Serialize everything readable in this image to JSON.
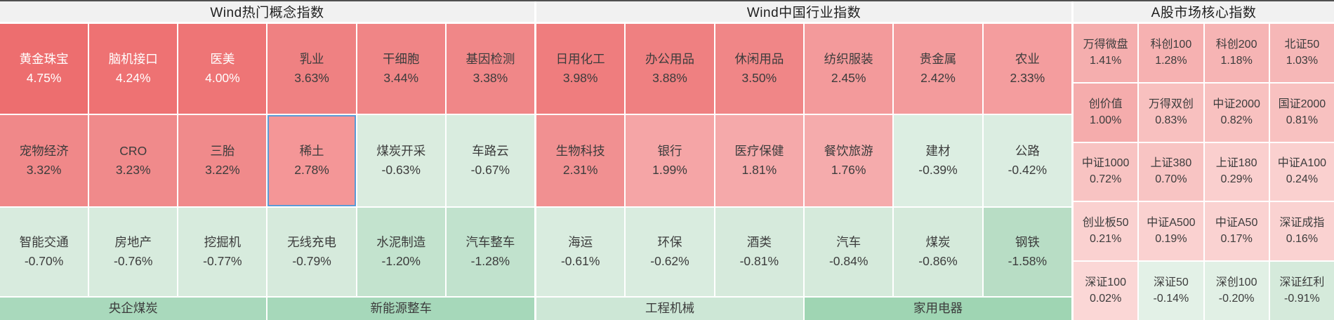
{
  "colors": {
    "title_bg": "#f1f1f1",
    "selected_border": "#5b9bd5",
    "page_bg": "#ffffff",
    "positive_strong": "#ed6e6f",
    "negative_strong": "#b8ddc5"
  },
  "sections": [
    {
      "title": "Wind热门概念指数",
      "columns": 6,
      "cells": [
        {
          "name": "黄金珠宝",
          "value": "4.75%",
          "bg": "#ed6e6f",
          "fg": "#ffffff"
        },
        {
          "name": "脑机接口",
          "value": "4.24%",
          "bg": "#ee7273",
          "fg": "#ffffff"
        },
        {
          "name": "医美",
          "value": "4.00%",
          "bg": "#ee7576",
          "fg": "#ffffff"
        },
        {
          "name": "乳业",
          "value": "3.63%",
          "bg": "#ef8182"
        },
        {
          "name": "干细胞",
          "value": "3.44%",
          "bg": "#f08586"
        },
        {
          "name": "基因检测",
          "value": "3.38%",
          "bg": "#f08788"
        },
        {
          "name": "宠物经济",
          "value": "3.32%",
          "bg": "#f08889"
        },
        {
          "name": "CRO",
          "value": "3.23%",
          "bg": "#f08a8b"
        },
        {
          "name": "三胎",
          "value": "3.22%",
          "bg": "#f08a8b"
        },
        {
          "name": "稀土",
          "value": "2.78%",
          "bg": "#f49697",
          "selected": true
        },
        {
          "name": "煤炭开采",
          "value": "-0.63%",
          "bg": "#daecdf"
        },
        {
          "name": "车路云",
          "value": "-0.67%",
          "bg": "#d9ecdf"
        },
        {
          "name": "智能交通",
          "value": "-0.70%",
          "bg": "#d8ebde"
        },
        {
          "name": "房地产",
          "value": "-0.76%",
          "bg": "#d7ebdd"
        },
        {
          "name": "挖掘机",
          "value": "-0.77%",
          "bg": "#d7ebdd"
        },
        {
          "name": "无线充电",
          "value": "-0.79%",
          "bg": "#d6eadc"
        },
        {
          "name": "水泥制造",
          "value": "-1.20%",
          "bg": "#c3e3ce"
        },
        {
          "name": "汽车整车",
          "value": "-1.28%",
          "bg": "#c1e2cd"
        }
      ],
      "footer": [
        {
          "label": "央企煤炭",
          "bg": "#a9d9bc"
        },
        {
          "label": "新能源整车",
          "bg": "#a6d8ba"
        }
      ]
    },
    {
      "title": "Wind中国行业指数",
      "columns": 6,
      "cells": [
        {
          "name": "日用化工",
          "value": "3.98%",
          "bg": "#ef7d7e"
        },
        {
          "name": "办公用品",
          "value": "3.88%",
          "bg": "#ef8081"
        },
        {
          "name": "休闲用品",
          "value": "3.50%",
          "bg": "#f08687"
        },
        {
          "name": "纺织服装",
          "value": "2.45%",
          "bg": "#f39a9b"
        },
        {
          "name": "贵金属",
          "value": "2.42%",
          "bg": "#f39b9c"
        },
        {
          "name": "农业",
          "value": "2.33%",
          "bg": "#f49d9e"
        },
        {
          "name": "生物科技",
          "value": "2.31%",
          "bg": "#f19091"
        },
        {
          "name": "银行",
          "value": "1.99%",
          "bg": "#f5a5a6"
        },
        {
          "name": "医疗保健",
          "value": "1.81%",
          "bg": "#f5a9aa"
        },
        {
          "name": "餐饮旅游",
          "value": "1.76%",
          "bg": "#f5abac"
        },
        {
          "name": "建材",
          "value": "-0.39%",
          "bg": "#dceee2"
        },
        {
          "name": "公路",
          "value": "-0.42%",
          "bg": "#dbede1"
        },
        {
          "name": "海运",
          "value": "-0.61%",
          "bg": "#d9ecdf"
        },
        {
          "name": "环保",
          "value": "-0.62%",
          "bg": "#d9ecdf"
        },
        {
          "name": "酒类",
          "value": "-0.81%",
          "bg": "#d6eadc"
        },
        {
          "name": "汽车",
          "value": "-0.84%",
          "bg": "#d5eadb"
        },
        {
          "name": "煤炭",
          "value": "-0.86%",
          "bg": "#d5eadb"
        },
        {
          "name": "钢铁",
          "value": "-1.58%",
          "bg": "#b8ddc5"
        }
      ],
      "footer": [
        {
          "label": "工程机械",
          "bg": "#cde7d6"
        },
        {
          "label": "家用电器",
          "bg": "#9fd5b3"
        }
      ]
    },
    {
      "title": "A股市场核心指数",
      "columns": 4,
      "cells": [
        {
          "name": "万得微盘",
          "value": "1.41%",
          "bg": "#f5aeae"
        },
        {
          "name": "科创100",
          "value": "1.28%",
          "bg": "#f6b1b1"
        },
        {
          "name": "科创200",
          "value": "1.18%",
          "bg": "#f6b4b4"
        },
        {
          "name": "北证50",
          "value": "1.03%",
          "bg": "#f6b7b7"
        },
        {
          "name": "创价值",
          "value": "1.00%",
          "bg": "#f5acac"
        },
        {
          "name": "万得双创",
          "value": "0.83%",
          "bg": "#f8c0bf"
        },
        {
          "name": "中证2000",
          "value": "0.82%",
          "bg": "#f8c1c0"
        },
        {
          "name": "国证2000",
          "value": "0.81%",
          "bg": "#f8c1c0"
        },
        {
          "name": "中证1000",
          "value": "0.72%",
          "bg": "#f8c3c2"
        },
        {
          "name": "上证380",
          "value": "0.70%",
          "bg": "#f8c4c3"
        },
        {
          "name": "上证180",
          "value": "0.29%",
          "bg": "#facfce"
        },
        {
          "name": "中证A100",
          "value": "0.24%",
          "bg": "#fad0cf"
        },
        {
          "name": "创业板50",
          "value": "0.21%",
          "bg": "#fad1d0"
        },
        {
          "name": "中证A500",
          "value": "0.19%",
          "bg": "#fad1d0"
        },
        {
          "name": "中证A50",
          "value": "0.17%",
          "bg": "#fad2d1"
        },
        {
          "name": "深证成指",
          "value": "0.16%",
          "bg": "#fad2d1"
        },
        {
          "name": "深证100",
          "value": "0.02%",
          "bg": "#fbd7d6"
        },
        {
          "name": "深证50",
          "value": "-0.14%",
          "bg": "#e3f1e7"
        },
        {
          "name": "深创100",
          "value": "-0.20%",
          "bg": "#e1f0e5"
        },
        {
          "name": "深证红利",
          "value": "-0.91%",
          "bg": "#d5eadb"
        }
      ]
    }
  ]
}
